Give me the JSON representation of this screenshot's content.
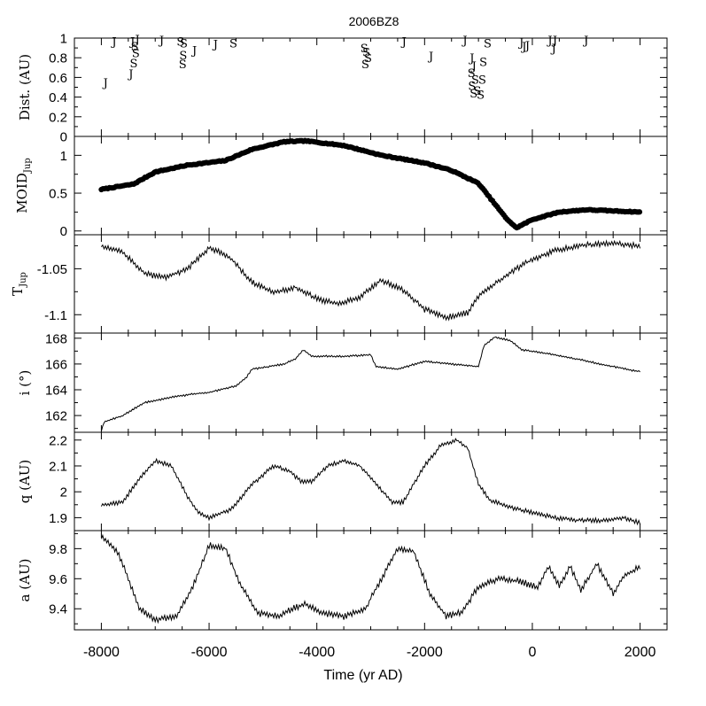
{
  "title": "2006BZ8",
  "xlabel": "Time (yr AD)",
  "x_tick_labels": [
    "-8000",
    "-6000",
    "-4000",
    "-2000",
    "0",
    "2000"
  ],
  "panel_labels": {
    "dist": "Dist. (AU)",
    "moid_main": "MOID",
    "moid_sub": "Jup",
    "tjup_main": "T",
    "tjup_sub": "Jup",
    "inc": "i (°)",
    "q": "q (AU)",
    "a": "a (AU)"
  },
  "chart_data": [
    {
      "id": "dist",
      "type": "scatter",
      "ylabel": "Dist. (AU)",
      "ylim": [
        0,
        1
      ],
      "yticks": [
        0,
        0.2,
        0.4,
        0.6,
        0.8,
        1
      ],
      "ytick_labels": [
        "0",
        "0.2",
        "0.4",
        "0.6",
        "0.8",
        "1"
      ],
      "xlim": [
        -8500,
        2500
      ],
      "encounter_markers": [
        {
          "planet": "J",
          "x": -7920,
          "y": 0.55
        },
        {
          "planet": "J",
          "x": -7760,
          "y": 0.97
        },
        {
          "planet": "J",
          "x": -7450,
          "y": 0.64
        },
        {
          "planet": "J",
          "x": -7420,
          "y": 0.97
        },
        {
          "planet": "S",
          "x": -7380,
          "y": 0.92
        },
        {
          "planet": "S",
          "x": -7360,
          "y": 0.85
        },
        {
          "planet": "S",
          "x": -7400,
          "y": 0.75
        },
        {
          "planet": "J",
          "x": -7330,
          "y": 0.99
        },
        {
          "planet": "J",
          "x": -6880,
          "y": 0.98
        },
        {
          "planet": "S",
          "x": -6530,
          "y": 0.97
        },
        {
          "planet": "S",
          "x": -6470,
          "y": 0.95
        },
        {
          "planet": "S",
          "x": -6480,
          "y": 0.83
        },
        {
          "planet": "S",
          "x": -6490,
          "y": 0.74
        },
        {
          "planet": "J",
          "x": -6270,
          "y": 0.88
        },
        {
          "planet": "J",
          "x": -5880,
          "y": 0.94
        },
        {
          "planet": "S",
          "x": -5550,
          "y": 0.95
        },
        {
          "planet": "S",
          "x": -3120,
          "y": 0.9
        },
        {
          "planet": "S",
          "x": -3080,
          "y": 0.86
        },
        {
          "planet": "S",
          "x": -3050,
          "y": 0.8
        },
        {
          "planet": "S",
          "x": -3100,
          "y": 0.74
        },
        {
          "planet": "J",
          "x": -2380,
          "y": 0.97
        },
        {
          "planet": "J",
          "x": -1880,
          "y": 0.82
        },
        {
          "planet": "J",
          "x": -1250,
          "y": 0.98
        },
        {
          "planet": "J",
          "x": -1120,
          "y": 0.8
        },
        {
          "planet": "J",
          "x": -1080,
          "y": 0.72
        },
        {
          "planet": "S",
          "x": -1130,
          "y": 0.65
        },
        {
          "planet": "S",
          "x": -1060,
          "y": 0.58
        },
        {
          "planet": "S",
          "x": -1120,
          "y": 0.52
        },
        {
          "planet": "S",
          "x": -1020,
          "y": 0.47
        },
        {
          "planet": "S",
          "x": -1090,
          "y": 0.44
        },
        {
          "planet": "S",
          "x": -960,
          "y": 0.43
        },
        {
          "planet": "S",
          "x": -930,
          "y": 0.58
        },
        {
          "planet": "S",
          "x": -910,
          "y": 0.76
        },
        {
          "planet": "S",
          "x": -830,
          "y": 0.95
        },
        {
          "planet": "J",
          "x": -200,
          "y": 0.96
        },
        {
          "planet": "J",
          "x": -150,
          "y": 0.92
        },
        {
          "planet": "J",
          "x": -90,
          "y": 0.93
        },
        {
          "planet": "J",
          "x": 330,
          "y": 0.98
        },
        {
          "planet": "J",
          "x": 420,
          "y": 0.98
        },
        {
          "planet": "J",
          "x": 400,
          "y": 0.9
        },
        {
          "planet": "J",
          "x": 1000,
          "y": 0.98
        }
      ]
    },
    {
      "id": "moid",
      "type": "scatter",
      "ylabel": "MOID_Jup",
      "ylim": [
        -0.05,
        1.25
      ],
      "yticks": [
        0,
        0.5,
        1
      ],
      "ytick_labels": [
        "0",
        "0.5",
        "1"
      ],
      "xlim": [
        -8500,
        2500
      ],
      "knots": [
        [
          -8000,
          0.55
        ],
        [
          -7400,
          0.62
        ],
        [
          -7000,
          0.78
        ],
        [
          -6400,
          0.87
        ],
        [
          -5700,
          0.93
        ],
        [
          -5200,
          1.08
        ],
        [
          -4600,
          1.18
        ],
        [
          -4200,
          1.19
        ],
        [
          -3500,
          1.13
        ],
        [
          -2800,
          1.0
        ],
        [
          -2000,
          0.9
        ],
        [
          -1500,
          0.8
        ],
        [
          -1000,
          0.63
        ],
        [
          -500,
          0.18
        ],
        [
          -300,
          0.04
        ],
        [
          0,
          0.15
        ],
        [
          500,
          0.25
        ],
        [
          1000,
          0.28
        ],
        [
          2000,
          0.25
        ]
      ]
    },
    {
      "id": "tjup",
      "type": "line",
      "ylabel": "T_Jup",
      "ylim": [
        -1.12,
        -1.013
      ],
      "yticks": [
        -1.05,
        -1.1
      ],
      "ytick_labels": [
        "-1.05",
        "-1.1"
      ],
      "xlim": [
        -8500,
        2500
      ],
      "knots": [
        [
          -8000,
          -1.025
        ],
        [
          -7600,
          -1.032
        ],
        [
          -7200,
          -1.055
        ],
        [
          -6800,
          -1.06
        ],
        [
          -6400,
          -1.05
        ],
        [
          -6000,
          -1.027
        ],
        [
          -5600,
          -1.038
        ],
        [
          -5200,
          -1.065
        ],
        [
          -4800,
          -1.076
        ],
        [
          -4400,
          -1.07
        ],
        [
          -4000,
          -1.083
        ],
        [
          -3600,
          -1.088
        ],
        [
          -3200,
          -1.081
        ],
        [
          -2800,
          -1.062
        ],
        [
          -2400,
          -1.073
        ],
        [
          -2000,
          -1.094
        ],
        [
          -1600,
          -1.103
        ],
        [
          -1200,
          -1.098
        ],
        [
          -1000,
          -1.08
        ],
        [
          -600,
          -1.062
        ],
        [
          -200,
          -1.046
        ],
        [
          400,
          -1.03
        ],
        [
          1000,
          -1.024
        ],
        [
          1500,
          -1.022
        ],
        [
          2000,
          -1.025
        ]
      ]
    },
    {
      "id": "inc",
      "type": "line",
      "ylabel": "i (°)",
      "ylim": [
        160.7,
        168.4
      ],
      "yticks": [
        162,
        164,
        166,
        168
      ],
      "ytick_labels": [
        "162",
        "164",
        "166",
        "168"
      ],
      "xlim": [
        -8500,
        2500
      ],
      "knots": [
        [
          -8000,
          160.8
        ],
        [
          -7950,
          161.5
        ],
        [
          -7600,
          162.0
        ],
        [
          -7400,
          162.5
        ],
        [
          -7200,
          163.0
        ],
        [
          -6600,
          163.5
        ],
        [
          -6000,
          163.8
        ],
        [
          -5500,
          164.3
        ],
        [
          -5300,
          165.0
        ],
        [
          -5200,
          165.6
        ],
        [
          -4600,
          166.0
        ],
        [
          -4400,
          166.4
        ],
        [
          -4250,
          167.1
        ],
        [
          -4100,
          166.6
        ],
        [
          -3500,
          166.6
        ],
        [
          -3000,
          166.7
        ],
        [
          -2900,
          165.8
        ],
        [
          -2500,
          165.6
        ],
        [
          -2000,
          166.2
        ],
        [
          -1500,
          166.0
        ],
        [
          -1000,
          165.8
        ],
        [
          -900,
          167.4
        ],
        [
          -700,
          168.1
        ],
        [
          -400,
          167.8
        ],
        [
          -200,
          167.1
        ],
        [
          300,
          166.8
        ],
        [
          800,
          166.4
        ],
        [
          1500,
          165.8
        ],
        [
          2000,
          165.4
        ]
      ]
    },
    {
      "id": "q",
      "type": "line",
      "ylabel": "q (AU)",
      "ylim": [
        1.85,
        2.23
      ],
      "yticks": [
        1.9,
        2,
        2.1,
        2.2
      ],
      "ytick_labels": [
        "1.9",
        "2",
        "2.1",
        "2.2"
      ],
      "xlim": [
        -8500,
        2500
      ],
      "knots": [
        [
          -8000,
          1.95
        ],
        [
          -7600,
          1.96
        ],
        [
          -7300,
          2.05
        ],
        [
          -7000,
          2.12
        ],
        [
          -6700,
          2.1
        ],
        [
          -6400,
          1.98
        ],
        [
          -6200,
          1.92
        ],
        [
          -6000,
          1.9
        ],
        [
          -5600,
          1.93
        ],
        [
          -5200,
          2.03
        ],
        [
          -4800,
          2.1
        ],
        [
          -4500,
          2.08
        ],
        [
          -4300,
          2.04
        ],
        [
          -4100,
          2.04
        ],
        [
          -3800,
          2.1
        ],
        [
          -3500,
          2.12
        ],
        [
          -3200,
          2.1
        ],
        [
          -2900,
          2.03
        ],
        [
          -2600,
          1.96
        ],
        [
          -2400,
          1.96
        ],
        [
          -2000,
          2.1
        ],
        [
          -1700,
          2.18
        ],
        [
          -1400,
          2.2
        ],
        [
          -1200,
          2.17
        ],
        [
          -1000,
          2.03
        ],
        [
          -800,
          1.97
        ],
        [
          -400,
          1.94
        ],
        [
          0,
          1.92
        ],
        [
          400,
          1.9
        ],
        [
          800,
          1.89
        ],
        [
          1400,
          1.89
        ],
        [
          1700,
          1.9
        ],
        [
          2000,
          1.88
        ]
      ]
    },
    {
      "id": "a",
      "type": "line",
      "ylabel": "a (AU)",
      "ylim": [
        9.26,
        9.92
      ],
      "yticks": [
        9.4,
        9.6,
        9.8
      ],
      "ytick_labels": [
        "9.4",
        "9.6",
        "9.8"
      ],
      "xlim": [
        -8500,
        2500
      ],
      "knots": [
        [
          -8000,
          9.88
        ],
        [
          -7700,
          9.78
        ],
        [
          -7500,
          9.6
        ],
        [
          -7300,
          9.4
        ],
        [
          -7000,
          9.33
        ],
        [
          -6600,
          9.35
        ],
        [
          -6300,
          9.55
        ],
        [
          -6000,
          9.82
        ],
        [
          -5700,
          9.8
        ],
        [
          -5400,
          9.55
        ],
        [
          -5100,
          9.37
        ],
        [
          -4700,
          9.35
        ],
        [
          -4400,
          9.41
        ],
        [
          -4200,
          9.43
        ],
        [
          -3900,
          9.37
        ],
        [
          -3500,
          9.35
        ],
        [
          -3100,
          9.4
        ],
        [
          -2800,
          9.6
        ],
        [
          -2500,
          9.8
        ],
        [
          -2200,
          9.78
        ],
        [
          -1900,
          9.5
        ],
        [
          -1600,
          9.35
        ],
        [
          -1300,
          9.38
        ],
        [
          -1000,
          9.55
        ],
        [
          -600,
          9.6
        ],
        [
          -200,
          9.58
        ],
        [
          100,
          9.54
        ],
        [
          300,
          9.68
        ],
        [
          500,
          9.55
        ],
        [
          700,
          9.68
        ],
        [
          900,
          9.52
        ],
        [
          1200,
          9.7
        ],
        [
          1500,
          9.5
        ],
        [
          1700,
          9.62
        ],
        [
          2000,
          9.68
        ]
      ]
    }
  ]
}
